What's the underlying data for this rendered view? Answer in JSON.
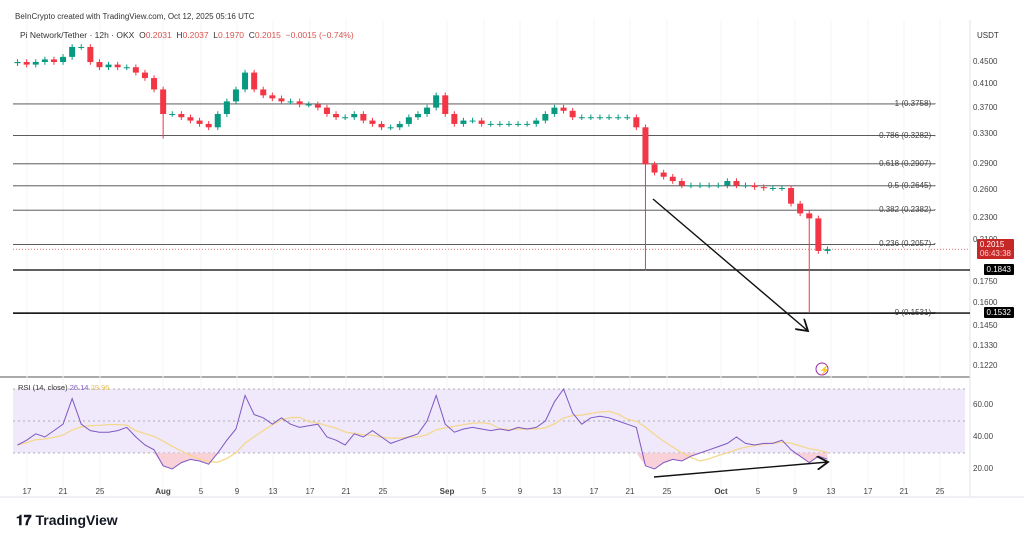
{
  "header": {
    "credit": "BeInCrypto created with TradingView.com, Oct 12, 2025 05:16 UTC",
    "symbol": "Pi Network/Tether · 12h · OKX",
    "o_label": "O",
    "o": "0.2031",
    "h_label": "H",
    "h": "0.2037",
    "l_label": "L",
    "l": "0.1970",
    "c_label": "C",
    "c": "0.2015",
    "change": "−0.0015 (−0.74%)"
  },
  "currency": "USDT",
  "colors": {
    "up": "#089981",
    "down": "#f23645",
    "rsi": "#7e57c2",
    "rsi_ma": "#f5d78e",
    "band": "#efe9fb",
    "price_tag": "#c62828"
  },
  "footer": {
    "logo": "TradingView"
  },
  "chart_data": [
    {
      "type": "candlestick",
      "title": "Pi Network/Tether · 12h · OKX",
      "scale": "log",
      "ylim": [
        0.118,
        0.49
      ],
      "yticks": [
        "0.4500",
        "0.4100",
        "0.3700",
        "0.3300",
        "0.2900",
        "0.2600",
        "0.2300",
        "0.2100",
        "0.1750",
        "0.1600",
        "0.1450",
        "0.1330",
        "0.1220"
      ],
      "xticks": [
        "17",
        "21",
        "25",
        "Aug",
        "5",
        "9",
        "13",
        "17",
        "21",
        "25",
        "Sep",
        "5",
        "9",
        "13",
        "17",
        "21",
        "25",
        "Oct",
        "5",
        "9",
        "13",
        "17",
        "21",
        "25"
      ],
      "start_date": "2025-07-15",
      "closes": [
        0.45,
        0.445,
        0.45,
        0.455,
        0.45,
        0.46,
        0.48,
        0.48,
        0.45,
        0.44,
        0.445,
        0.44,
        0.44,
        0.43,
        0.42,
        0.4,
        0.36,
        0.36,
        0.355,
        0.35,
        0.345,
        0.34,
        0.36,
        0.38,
        0.4,
        0.43,
        0.4,
        0.39,
        0.385,
        0.38,
        0.38,
        0.375,
        0.375,
        0.37,
        0.36,
        0.355,
        0.355,
        0.36,
        0.35,
        0.345,
        0.34,
        0.34,
        0.345,
        0.355,
        0.36,
        0.37,
        0.39,
        0.36,
        0.345,
        0.35,
        0.35,
        0.345,
        0.345,
        0.345,
        0.345,
        0.345,
        0.345,
        0.35,
        0.36,
        0.37,
        0.365,
        0.355,
        0.355,
        0.355,
        0.355,
        0.355,
        0.355,
        0.355,
        0.34,
        0.29,
        0.28,
        0.275,
        0.27,
        0.265,
        0.265,
        0.265,
        0.265,
        0.265,
        0.27,
        0.265,
        0.265,
        0.263,
        0.262,
        0.262,
        0.262,
        0.245,
        0.235,
        0.23,
        0.2,
        0.2015
      ],
      "notable_lows": {
        "16": 0.324,
        "69": 0.184,
        "87": 0.1532
      },
      "fib_levels": [
        {
          "label": "1 (0.3758)",
          "value": 0.3758
        },
        {
          "label": "0.786 (0.3282)",
          "value": 0.3282
        },
        {
          "label": "0.618 (0.2907)",
          "value": 0.2907
        },
        {
          "label": "0.5 (0.2645)",
          "value": 0.2645
        },
        {
          "label": "0.382 (0.2382)",
          "value": 0.2382
        },
        {
          "label": "0.236 (0.2057)",
          "value": 0.2057
        },
        {
          "label": "0 (0.1531)",
          "value": 0.1531
        }
      ],
      "horizontal_lines": [
        {
          "label": "0.1843",
          "value": 0.1843
        },
        {
          "label": "0.1532",
          "value": 0.1532
        }
      ],
      "last_price": {
        "value": "0.2015",
        "countdown": "06:43:38"
      }
    },
    {
      "type": "line",
      "title": "RSI (14, close)",
      "value": "26.14",
      "ma_value": "29.96",
      "ylim": [
        10,
        75
      ],
      "yticks": [
        "60.00",
        "40.00",
        "20.00"
      ],
      "bands": [
        70,
        50,
        30
      ],
      "rsi": [
        35,
        38,
        42,
        40,
        44,
        48,
        64,
        48,
        44,
        43,
        43,
        44,
        46,
        40,
        35,
        32,
        22,
        20,
        24,
        26,
        25,
        23,
        30,
        38,
        45,
        66,
        54,
        52,
        48,
        52,
        48,
        46,
        47,
        48,
        40,
        38,
        35,
        42,
        40,
        44,
        40,
        36,
        38,
        40,
        42,
        50,
        66,
        48,
        43,
        45,
        46,
        45,
        44,
        45,
        44,
        46,
        45,
        46,
        50,
        62,
        70,
        55,
        48,
        52,
        53,
        52,
        50,
        48,
        46,
        22,
        20,
        24,
        26,
        25,
        28,
        30,
        32,
        34,
        36,
        40,
        36,
        35,
        36,
        36,
        38,
        32,
        28,
        24,
        28,
        26.14
      ]
    }
  ]
}
